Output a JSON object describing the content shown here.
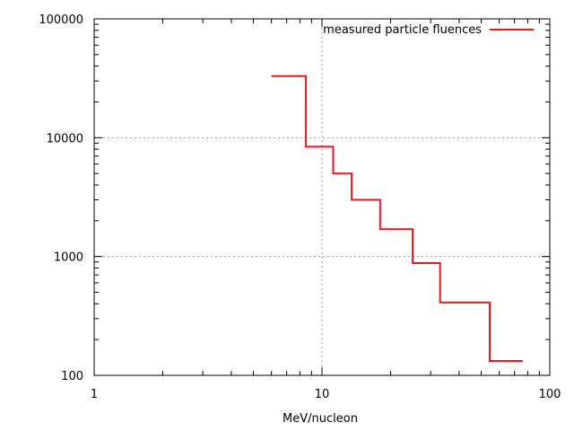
{
  "chart_data": {
    "type": "line",
    "title": "",
    "xlabel": "MeV/nucleon",
    "ylabel": "",
    "x_scale": "log",
    "y_scale": "log",
    "xlim": [
      1,
      100
    ],
    "ylim": [
      100,
      100000
    ],
    "x_ticks": [
      1,
      10,
      100
    ],
    "x_tick_labels": [
      "1",
      "10",
      "100"
    ],
    "y_ticks": [
      100,
      1000,
      10000,
      100000
    ],
    "y_tick_labels": [
      "100",
      "1000",
      "10000",
      "100000"
    ],
    "grid": true,
    "legend_position": "top-right",
    "series": [
      {
        "name": "measured particle fluences",
        "color": "#e41a1c",
        "style": "steps",
        "points": [
          {
            "x": 6.0,
            "y": 33000
          },
          {
            "x": 8.5,
            "y": 33000
          },
          {
            "x": 8.5,
            "y": 8400
          },
          {
            "x": 11.2,
            "y": 8400
          },
          {
            "x": 11.2,
            "y": 5000
          },
          {
            "x": 13.5,
            "y": 5000
          },
          {
            "x": 13.5,
            "y": 3000
          },
          {
            "x": 18.0,
            "y": 3000
          },
          {
            "x": 18.0,
            "y": 1700
          },
          {
            "x": 25.0,
            "y": 1700
          },
          {
            "x": 25.0,
            "y": 880
          },
          {
            "x": 33.0,
            "y": 880
          },
          {
            "x": 33.0,
            "y": 410
          },
          {
            "x": 54.5,
            "y": 410
          },
          {
            "x": 54.5,
            "y": 132
          },
          {
            "x": 76.0,
            "y": 132
          }
        ]
      }
    ]
  }
}
